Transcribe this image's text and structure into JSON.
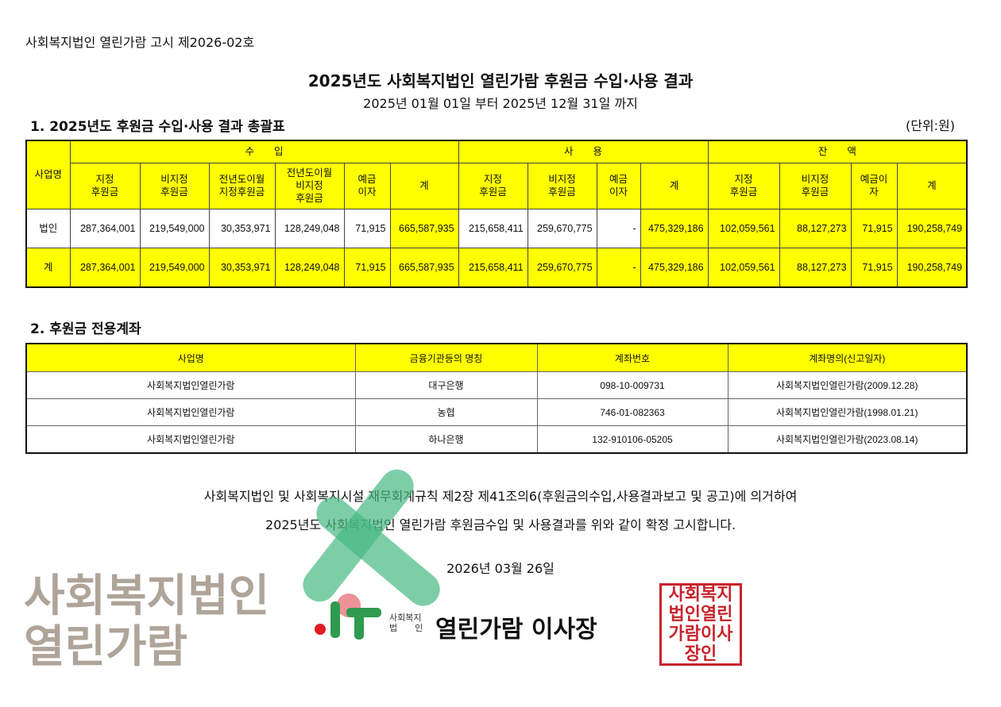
{
  "notice_number": "사회복지법인 열린가람 고시 제2026-02호",
  "title": "2025년도 사회복지법인 열린가람 후원금 수입·사용 결과",
  "period": "2025년 01월 01일 부터 2025년 12월 31일 까지",
  "section1": {
    "heading": "1. 2025년도 후원금 수입·사용 결과 총괄표",
    "unit": "(단위:원)",
    "row_header": "사업명",
    "groups": [
      "수　　입",
      "사　　용",
      "잔　　액"
    ],
    "income_cols": [
      "지정\n후원금",
      "비지정\n후원금",
      "전년도이월\n지정후원금",
      "전년도이월\n비지정\n후원금",
      "예금\n이자",
      "계"
    ],
    "usage_cols": [
      "지정\n후원금",
      "비지정\n후원금",
      "예금\n이자",
      "계"
    ],
    "balance_cols": [
      "지정\n후원금",
      "비지정\n후원금",
      "예금이\n자",
      "계"
    ],
    "rows": [
      {
        "name": "법인",
        "values": [
          "287,364,001",
          "219,549,000",
          "30,353,971",
          "128,249,048",
          "71,915",
          "665,587,935",
          "215,658,411",
          "259,670,775",
          "-",
          "475,329,186",
          "102,059,561",
          "88,127,273",
          "71,915",
          "190,258,749"
        ]
      },
      {
        "name": "계",
        "values": [
          "287,364,001",
          "219,549,000",
          "30,353,971",
          "128,249,048",
          "71,915",
          "665,587,935",
          "215,658,411",
          "259,670,775",
          "-",
          "475,329,186",
          "102,059,561",
          "88,127,273",
          "71,915",
          "190,258,749"
        ]
      }
    ]
  },
  "section2": {
    "heading": "2. 후원금 전용계좌",
    "columns": [
      "사업명",
      "금융기관등의 명칭",
      "계좌번호",
      "계좌명의(신고일자)"
    ],
    "rows": [
      [
        "사회복지법인열린가람",
        "대구은행",
        "098-10-009731",
        "사회복지법인열린가람(2009.12.28)"
      ],
      [
        "사회복지법인열린가람",
        "농협",
        "746-01-082363",
        "사회복지법인열린가람(1998.01.21)"
      ],
      [
        "사회복지법인열린가람",
        "하나은행",
        "132-910106-05205",
        "사회복지법인열린가람(2023.08.14)"
      ]
    ]
  },
  "body_line1": "사회복지법인 및 사회복지시설 재무회계규칙 제2장 제41조의6(후원금의수입,사용결과보고 및 공고)에 의거하여",
  "body_line2": "2025년도 사회복지법인 열린가람 후원금수입 및 사용결과를 위와 같이 확정 고시합니다.",
  "date": "2026년 03월 26일",
  "signature": {
    "org_small_1": "사회복지",
    "org_small_2": "법　　인",
    "name": "열린가람 이사장",
    "seal_text": "사회복지법인열린가람이사장인"
  },
  "watermark": "사회복지법인 열린가람",
  "colors": {
    "highlight": "#ffff00",
    "logo_green": "#2e9b4e",
    "seal_red": "#c8232c"
  }
}
